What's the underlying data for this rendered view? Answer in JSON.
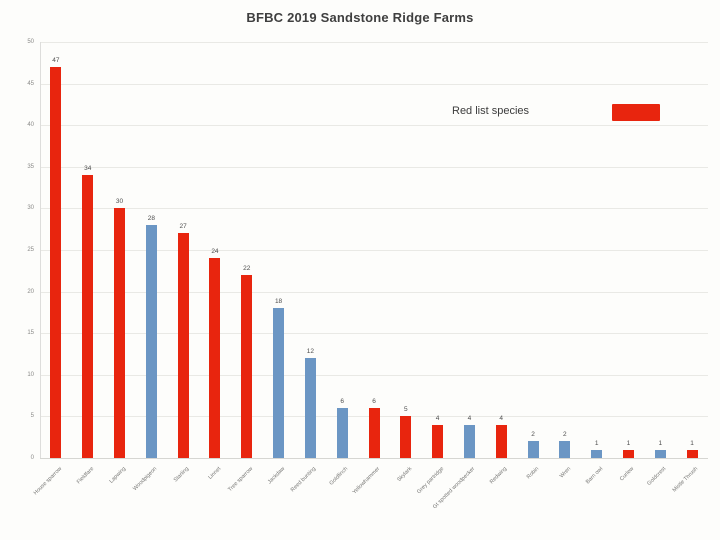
{
  "title": "BFBC 2019 Sandstone Ridge Farms",
  "legend": {
    "label": "Red list species",
    "swatch_color": "#e8250e"
  },
  "chart_data": {
    "type": "bar",
    "title": "BFBC 2019 Sandstone Ridge Farms",
    "categories": [
      "House sparrow",
      "Fieldfare",
      "Lapwing",
      "Woodpigeon",
      "Starling",
      "Linnet",
      "Tree sparrow",
      "Jackdaw",
      "Reed bunting",
      "Goldfinch",
      "Yellowhammer",
      "Skylark",
      "Grey partridge",
      "Gt spotted woodpecker",
      "Redwing",
      "Robin",
      "Wren",
      "Barn owl",
      "Curlew",
      "Goldcrest",
      "Mistle Thrush"
    ],
    "values": [
      47,
      34,
      30,
      28,
      27,
      24,
      22,
      18,
      12,
      6,
      6,
      5,
      4,
      4,
      4,
      2,
      2,
      1,
      1,
      1,
      1
    ],
    "red_list_flags": [
      true,
      true,
      true,
      false,
      true,
      true,
      true,
      false,
      false,
      false,
      true,
      true,
      true,
      false,
      true,
      false,
      false,
      false,
      true,
      false,
      true
    ],
    "series_colors": {
      "red_list": "#e8250e",
      "other": "#6b96c4"
    },
    "xlabel": "",
    "ylabel": "",
    "ylim": [
      0,
      50
    ],
    "ytick_step": 5,
    "grid": "horizontal",
    "legend_entries": [
      "Red list species"
    ],
    "legend_position": "upper-right-inside",
    "data_labels": true
  }
}
